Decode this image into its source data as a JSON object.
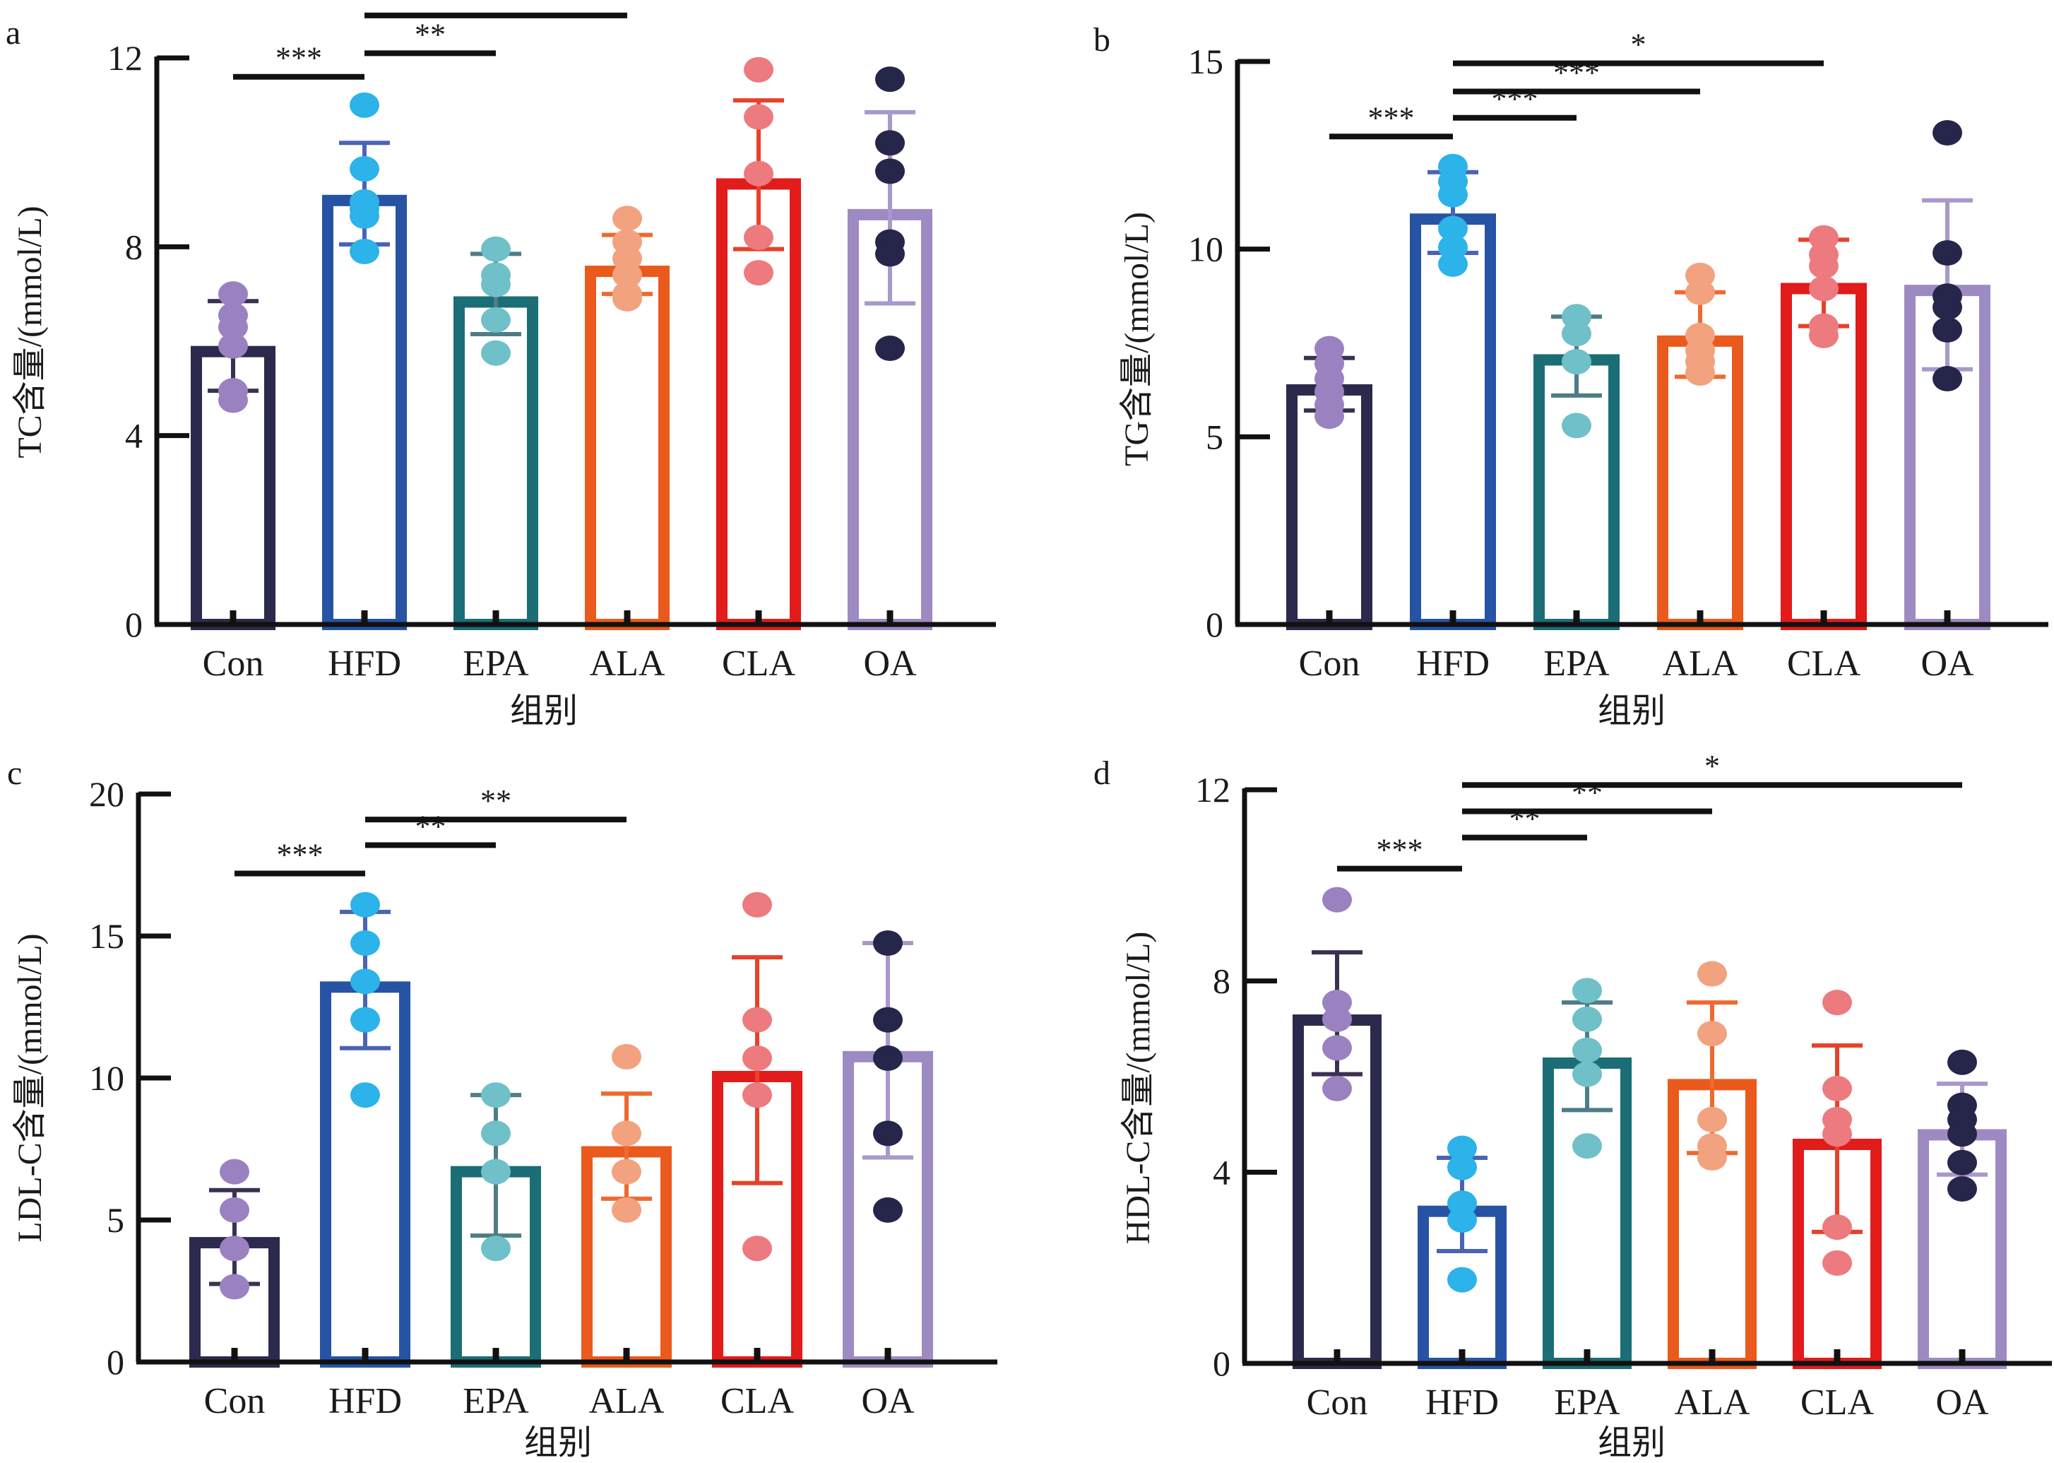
{
  "figure": {
    "categories": [
      "Con",
      "HFD",
      "EPA",
      "ALA",
      "CLA",
      "OA"
    ],
    "group_colors": {
      "Con": "#2b2a4c",
      "HFD": "#2753a5",
      "EPA": "#1b6d76",
      "ALA": "#ea5a1c",
      "CLA": "#e21b1b",
      "OA": "#9e8ac2"
    },
    "dot_colors": {
      "Con": "#9a82c0",
      "HFD": "#2bb3ea",
      "EPA": "#6fc0c8",
      "ALA": "#f2a27e",
      "CLA": "#ec7a7e",
      "OA": "#26264b"
    },
    "errorbar_colors": {
      "Con": "#3a3150",
      "HFD": "#4a64b4",
      "EPA": "#4f7c86",
      "ALA": "#ee6a30",
      "CLA": "#e8412a",
      "OA": "#a898cc"
    }
  },
  "chart_data": [
    {
      "panel": "a",
      "type": "bar",
      "xlabel": "组别",
      "ylabel": "TC含量/(mmol/L)",
      "ylim": [
        0,
        12
      ],
      "yticks": [
        "0",
        "4",
        "8",
        "12"
      ],
      "ytick_values": [
        0,
        4,
        8,
        12
      ],
      "categories": [
        "Con",
        "HFD",
        "EPA",
        "ALA",
        "CLA",
        "OA"
      ],
      "values": [
        5.9,
        9.1,
        6.95,
        7.6,
        9.45,
        8.8
      ],
      "error_low": [
        4.95,
        8.05,
        6.15,
        7.0,
        7.95,
        6.8
      ],
      "error_high": [
        6.85,
        10.2,
        7.85,
        8.25,
        11.1,
        10.85
      ],
      "points": [
        [
          7.0,
          6.55,
          6.3,
          5.9,
          4.95,
          4.75
        ],
        [
          11.0,
          9.65,
          8.95,
          8.8,
          8.65,
          7.9
        ],
        [
          7.95,
          7.4,
          7.2,
          6.45,
          5.75
        ],
        [
          8.6,
          8.1,
          7.75,
          7.4,
          7.0,
          6.9
        ],
        [
          11.75,
          10.75,
          9.55,
          8.2,
          7.45
        ],
        [
          11.55,
          10.2,
          9.6,
          8.1,
          7.85,
          5.85
        ]
      ],
      "significance": [
        {
          "from": "Con",
          "to": "HFD",
          "label": "***",
          "level": 11.6
        },
        {
          "from": "HFD",
          "to": "EPA",
          "label": "**",
          "level": 12.1
        },
        {
          "from": "HFD",
          "to": "ALA",
          "label": "*",
          "level": 12.9
        }
      ]
    },
    {
      "panel": "b",
      "type": "bar",
      "xlabel": "组别",
      "ylabel": "TG含量/(mmol/L)",
      "ylim": [
        0,
        15
      ],
      "yticks": [
        "0",
        "5",
        "10",
        "15"
      ],
      "ytick_values": [
        0,
        5,
        10,
        15
      ],
      "categories": [
        "Con",
        "HFD",
        "EPA",
        "ALA",
        "CLA",
        "OA"
      ],
      "values": [
        6.4,
        10.95,
        7.2,
        7.7,
        9.1,
        9.05
      ],
      "error_low": [
        5.7,
        9.9,
        6.1,
        6.6,
        7.95,
        6.8
      ],
      "error_high": [
        7.1,
        12.05,
        8.2,
        8.85,
        10.25,
        11.3
      ],
      "points": [
        [
          7.35,
          6.95,
          6.55,
          6.2,
          5.85,
          5.55
        ],
        [
          12.2,
          11.8,
          11.45,
          10.55,
          10.05,
          9.6
        ],
        [
          8.2,
          7.75,
          7.0,
          5.3
        ],
        [
          9.3,
          8.85,
          7.7,
          7.3,
          7.0,
          6.7
        ],
        [
          10.3,
          9.85,
          9.55,
          8.95,
          7.95,
          7.7
        ],
        [
          13.1,
          9.9,
          8.75,
          8.45,
          7.85,
          6.55
        ]
      ],
      "significance": [
        {
          "from": "Con",
          "to": "HFD",
          "label": "***",
          "level": 13.0
        },
        {
          "from": "HFD",
          "to": "EPA",
          "label": "***",
          "level": 13.5
        },
        {
          "from": "HFD",
          "to": "ALA",
          "label": "***",
          "level": 14.2
        },
        {
          "from": "HFD",
          "to": "CLA",
          "label": "*",
          "level": 14.95
        }
      ]
    },
    {
      "panel": "c",
      "type": "bar",
      "xlabel": "组别",
      "ylabel": "LDL-C含量/(mmol/L)",
      "ylim": [
        0,
        20
      ],
      "yticks": [
        "0",
        "5",
        "10",
        "15",
        "20"
      ],
      "ytick_values": [
        0,
        5,
        10,
        15,
        20
      ],
      "categories": [
        "Con",
        "HFD",
        "EPA",
        "ALA",
        "CLA",
        "OA"
      ],
      "values": [
        4.4,
        13.4,
        6.9,
        7.6,
        10.25,
        10.95
      ],
      "error_low": [
        2.75,
        11.05,
        4.45,
        5.75,
        6.3,
        7.2
      ],
      "error_high": [
        6.05,
        15.85,
        9.4,
        9.45,
        14.25,
        14.75
      ],
      "points": [
        [
          6.7,
          5.35,
          4.0,
          2.65
        ],
        [
          16.1,
          14.75,
          13.4,
          12.05,
          9.4
        ],
        [
          9.4,
          8.05,
          6.7,
          4.0
        ],
        [
          10.75,
          8.05,
          6.7,
          5.35
        ],
        [
          16.1,
          12.05,
          10.7,
          9.4,
          4.0
        ],
        [
          14.75,
          12.05,
          10.7,
          8.05,
          5.35
        ]
      ],
      "significance": [
        {
          "from": "Con",
          "to": "HFD",
          "label": "***",
          "level": 17.2
        },
        {
          "from": "HFD",
          "to": "EPA",
          "label": "**",
          "level": 18.2
        },
        {
          "from": "HFD",
          "to": "ALA",
          "label": "**",
          "level": 19.1
        }
      ]
    },
    {
      "panel": "d",
      "type": "bar",
      "xlabel": "组别",
      "ylabel": "HDL-C含量/(mmol/L)",
      "ylim": [
        0,
        12
      ],
      "yticks": [
        "0",
        "4",
        "8",
        "12"
      ],
      "ytick_values": [
        0,
        4,
        8,
        12
      ],
      "categories": [
        "Con",
        "HFD",
        "EPA",
        "ALA",
        "CLA",
        "OA"
      ],
      "values": [
        7.3,
        3.3,
        6.4,
        5.95,
        4.7,
        4.9
      ],
      "error_low": [
        6.05,
        2.35,
        5.3,
        4.4,
        2.75,
        3.95
      ],
      "error_high": [
        8.6,
        4.3,
        7.55,
        7.55,
        6.65,
        5.85
      ],
      "points": [
        [
          9.7,
          7.55,
          7.2,
          6.6,
          5.75
        ],
        [
          4.5,
          4.1,
          3.35,
          3.0,
          1.75
        ],
        [
          7.8,
          7.2,
          6.55,
          6.05,
          4.55
        ],
        [
          8.15,
          6.9,
          5.1,
          4.55,
          4.3
        ],
        [
          7.55,
          5.75,
          5.1,
          4.8,
          2.85,
          2.1
        ],
        [
          6.3,
          5.4,
          5.1,
          4.8,
          4.2,
          3.65
        ]
      ],
      "significance": [
        {
          "from": "Con",
          "to": "HFD",
          "label": "***",
          "level": 10.35
        },
        {
          "from": "HFD",
          "to": "EPA",
          "label": "**",
          "level": 11.0
        },
        {
          "from": "HFD",
          "to": "ALA",
          "label": "**",
          "level": 11.55
        },
        {
          "from": "HFD",
          "to": "OA",
          "label": "*",
          "level": 12.1
        }
      ]
    }
  ]
}
